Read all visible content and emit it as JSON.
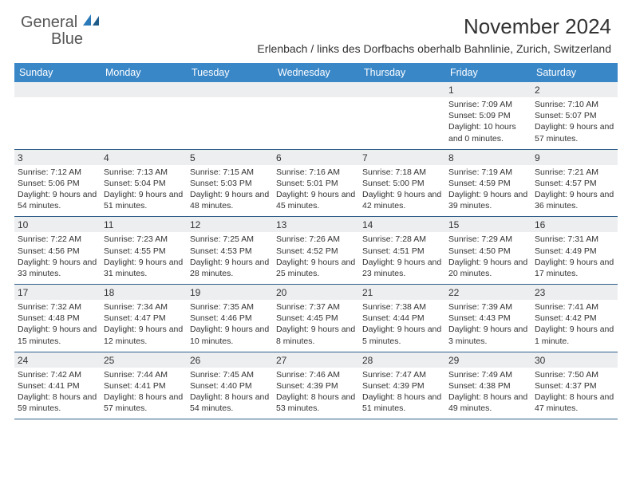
{
  "logo": {
    "word1": "General",
    "word2": "Blue"
  },
  "title": "November 2024",
  "location": "Erlenbach / links des Dorfbachs oberhalb Bahnlinie, Zurich, Switzerland",
  "colors": {
    "header_bg": "#3a87c8",
    "header_text": "#ffffff",
    "band_bg": "#eceef0",
    "rule": "#2f5f8a",
    "logo_gray": "#555555",
    "logo_blue": "#2a7ab9",
    "text": "#333333"
  },
  "day_names": [
    "Sunday",
    "Monday",
    "Tuesday",
    "Wednesday",
    "Thursday",
    "Friday",
    "Saturday"
  ],
  "weeks": [
    [
      {
        "n": "",
        "sr": "",
        "ss": "",
        "dl": ""
      },
      {
        "n": "",
        "sr": "",
        "ss": "",
        "dl": ""
      },
      {
        "n": "",
        "sr": "",
        "ss": "",
        "dl": ""
      },
      {
        "n": "",
        "sr": "",
        "ss": "",
        "dl": ""
      },
      {
        "n": "",
        "sr": "",
        "ss": "",
        "dl": ""
      },
      {
        "n": "1",
        "sr": "Sunrise: 7:09 AM",
        "ss": "Sunset: 5:09 PM",
        "dl": "Daylight: 10 hours and 0 minutes."
      },
      {
        "n": "2",
        "sr": "Sunrise: 7:10 AM",
        "ss": "Sunset: 5:07 PM",
        "dl": "Daylight: 9 hours and 57 minutes."
      }
    ],
    [
      {
        "n": "3",
        "sr": "Sunrise: 7:12 AM",
        "ss": "Sunset: 5:06 PM",
        "dl": "Daylight: 9 hours and 54 minutes."
      },
      {
        "n": "4",
        "sr": "Sunrise: 7:13 AM",
        "ss": "Sunset: 5:04 PM",
        "dl": "Daylight: 9 hours and 51 minutes."
      },
      {
        "n": "5",
        "sr": "Sunrise: 7:15 AM",
        "ss": "Sunset: 5:03 PM",
        "dl": "Daylight: 9 hours and 48 minutes."
      },
      {
        "n": "6",
        "sr": "Sunrise: 7:16 AM",
        "ss": "Sunset: 5:01 PM",
        "dl": "Daylight: 9 hours and 45 minutes."
      },
      {
        "n": "7",
        "sr": "Sunrise: 7:18 AM",
        "ss": "Sunset: 5:00 PM",
        "dl": "Daylight: 9 hours and 42 minutes."
      },
      {
        "n": "8",
        "sr": "Sunrise: 7:19 AM",
        "ss": "Sunset: 4:59 PM",
        "dl": "Daylight: 9 hours and 39 minutes."
      },
      {
        "n": "9",
        "sr": "Sunrise: 7:21 AM",
        "ss": "Sunset: 4:57 PM",
        "dl": "Daylight: 9 hours and 36 minutes."
      }
    ],
    [
      {
        "n": "10",
        "sr": "Sunrise: 7:22 AM",
        "ss": "Sunset: 4:56 PM",
        "dl": "Daylight: 9 hours and 33 minutes."
      },
      {
        "n": "11",
        "sr": "Sunrise: 7:23 AM",
        "ss": "Sunset: 4:55 PM",
        "dl": "Daylight: 9 hours and 31 minutes."
      },
      {
        "n": "12",
        "sr": "Sunrise: 7:25 AM",
        "ss": "Sunset: 4:53 PM",
        "dl": "Daylight: 9 hours and 28 minutes."
      },
      {
        "n": "13",
        "sr": "Sunrise: 7:26 AM",
        "ss": "Sunset: 4:52 PM",
        "dl": "Daylight: 9 hours and 25 minutes."
      },
      {
        "n": "14",
        "sr": "Sunrise: 7:28 AM",
        "ss": "Sunset: 4:51 PM",
        "dl": "Daylight: 9 hours and 23 minutes."
      },
      {
        "n": "15",
        "sr": "Sunrise: 7:29 AM",
        "ss": "Sunset: 4:50 PM",
        "dl": "Daylight: 9 hours and 20 minutes."
      },
      {
        "n": "16",
        "sr": "Sunrise: 7:31 AM",
        "ss": "Sunset: 4:49 PM",
        "dl": "Daylight: 9 hours and 17 minutes."
      }
    ],
    [
      {
        "n": "17",
        "sr": "Sunrise: 7:32 AM",
        "ss": "Sunset: 4:48 PM",
        "dl": "Daylight: 9 hours and 15 minutes."
      },
      {
        "n": "18",
        "sr": "Sunrise: 7:34 AM",
        "ss": "Sunset: 4:47 PM",
        "dl": "Daylight: 9 hours and 12 minutes."
      },
      {
        "n": "19",
        "sr": "Sunrise: 7:35 AM",
        "ss": "Sunset: 4:46 PM",
        "dl": "Daylight: 9 hours and 10 minutes."
      },
      {
        "n": "20",
        "sr": "Sunrise: 7:37 AM",
        "ss": "Sunset: 4:45 PM",
        "dl": "Daylight: 9 hours and 8 minutes."
      },
      {
        "n": "21",
        "sr": "Sunrise: 7:38 AM",
        "ss": "Sunset: 4:44 PM",
        "dl": "Daylight: 9 hours and 5 minutes."
      },
      {
        "n": "22",
        "sr": "Sunrise: 7:39 AM",
        "ss": "Sunset: 4:43 PM",
        "dl": "Daylight: 9 hours and 3 minutes."
      },
      {
        "n": "23",
        "sr": "Sunrise: 7:41 AM",
        "ss": "Sunset: 4:42 PM",
        "dl": "Daylight: 9 hours and 1 minute."
      }
    ],
    [
      {
        "n": "24",
        "sr": "Sunrise: 7:42 AM",
        "ss": "Sunset: 4:41 PM",
        "dl": "Daylight: 8 hours and 59 minutes."
      },
      {
        "n": "25",
        "sr": "Sunrise: 7:44 AM",
        "ss": "Sunset: 4:41 PM",
        "dl": "Daylight: 8 hours and 57 minutes."
      },
      {
        "n": "26",
        "sr": "Sunrise: 7:45 AM",
        "ss": "Sunset: 4:40 PM",
        "dl": "Daylight: 8 hours and 54 minutes."
      },
      {
        "n": "27",
        "sr": "Sunrise: 7:46 AM",
        "ss": "Sunset: 4:39 PM",
        "dl": "Daylight: 8 hours and 53 minutes."
      },
      {
        "n": "28",
        "sr": "Sunrise: 7:47 AM",
        "ss": "Sunset: 4:39 PM",
        "dl": "Daylight: 8 hours and 51 minutes."
      },
      {
        "n": "29",
        "sr": "Sunrise: 7:49 AM",
        "ss": "Sunset: 4:38 PM",
        "dl": "Daylight: 8 hours and 49 minutes."
      },
      {
        "n": "30",
        "sr": "Sunrise: 7:50 AM",
        "ss": "Sunset: 4:37 PM",
        "dl": "Daylight: 8 hours and 47 minutes."
      }
    ]
  ]
}
